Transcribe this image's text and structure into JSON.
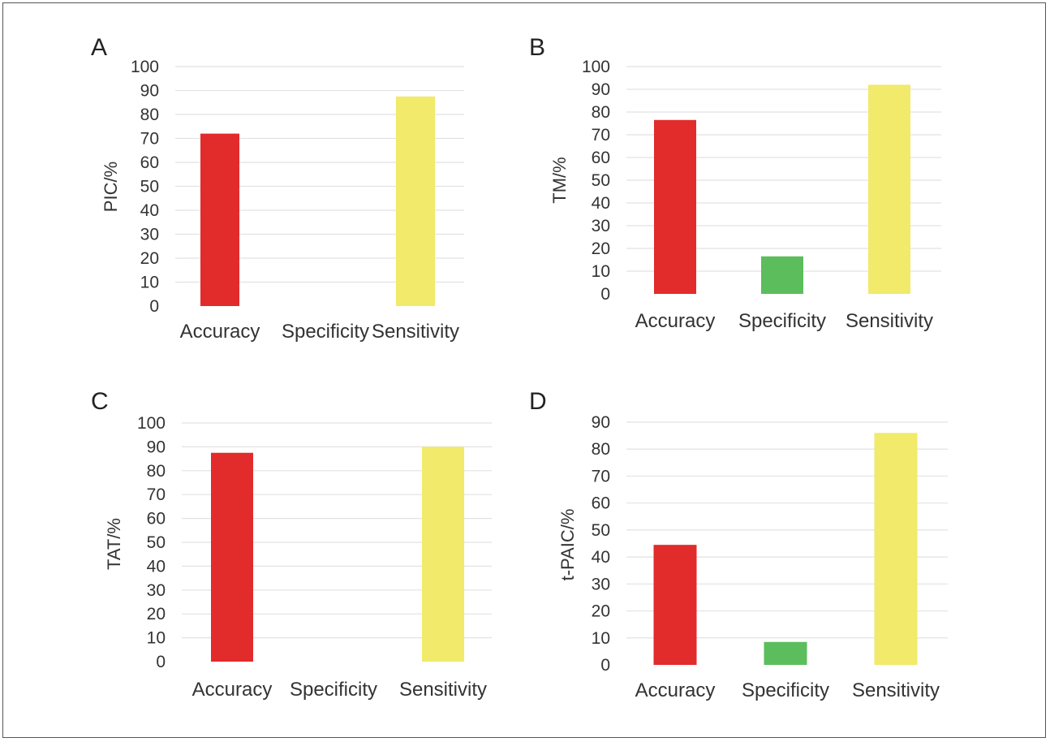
{
  "chart_data": [
    {
      "type": "bar",
      "panel": "A",
      "ylabel": "PIC/%",
      "categories": [
        "Accuracy",
        "Specificity",
        "Sensitivity"
      ],
      "values": [
        72,
        0,
        87.5
      ],
      "colors": [
        "#e22b2b",
        "#5cbd5c",
        "#f1ea6a"
      ],
      "ylim": [
        0,
        100
      ],
      "yticks": [
        0,
        10,
        20,
        30,
        40,
        50,
        60,
        70,
        80,
        90,
        100
      ],
      "grid": true
    },
    {
      "type": "bar",
      "panel": "B",
      "ylabel": "TM/%",
      "categories": [
        "Accuracy",
        "Specificity",
        "Sensitivity"
      ],
      "values": [
        76.5,
        16.5,
        92
      ],
      "colors": [
        "#e22b2b",
        "#5cbd5c",
        "#f1ea6a"
      ],
      "ylim": [
        0,
        100
      ],
      "yticks": [
        0,
        10,
        20,
        30,
        40,
        50,
        60,
        70,
        80,
        90,
        100
      ],
      "grid": true
    },
    {
      "type": "bar",
      "panel": "C",
      "ylabel": "TAT/%",
      "categories": [
        "Accuracy",
        "Specificity",
        "Sensitivity"
      ],
      "values": [
        87.5,
        0,
        90
      ],
      "colors": [
        "#e22b2b",
        "#5cbd5c",
        "#f1ea6a"
      ],
      "ylim": [
        0,
        100
      ],
      "yticks": [
        0,
        10,
        20,
        30,
        40,
        50,
        60,
        70,
        80,
        90,
        100
      ],
      "grid": true
    },
    {
      "type": "bar",
      "panel": "D",
      "ylabel": "t-PAIC/%",
      "categories": [
        "Accuracy",
        "Specificity",
        "Sensitivity"
      ],
      "values": [
        44.5,
        8.5,
        86
      ],
      "colors": [
        "#e22b2b",
        "#5cbd5c",
        "#f1ea6a"
      ],
      "ylim": [
        0,
        90
      ],
      "yticks": [
        0,
        10,
        20,
        30,
        40,
        50,
        60,
        70,
        80,
        90
      ],
      "grid": true
    }
  ]
}
